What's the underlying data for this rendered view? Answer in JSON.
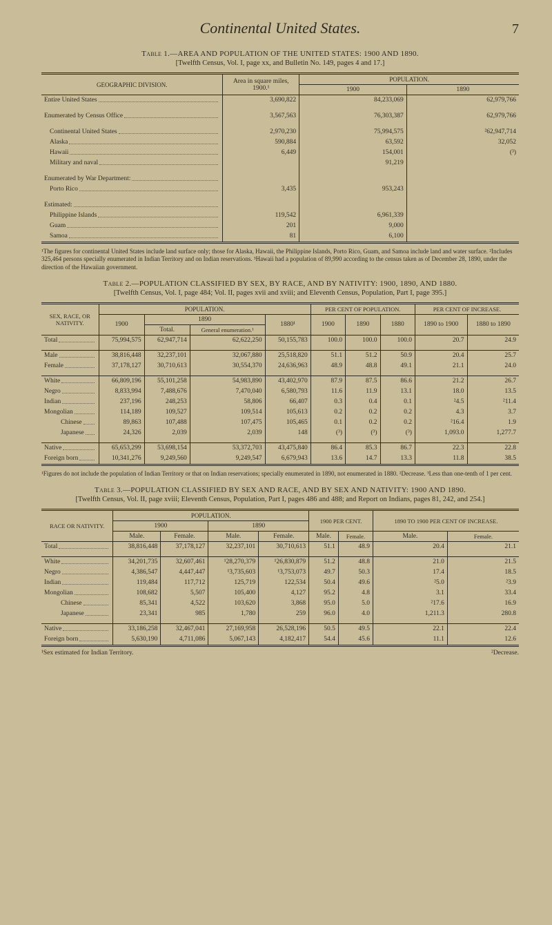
{
  "page_title": "Continental United States.",
  "page_number": "7",
  "table1": {
    "caption": "Table 1.—AREA AND POPULATION OF THE UNITED STATES: 1900 AND 1890.",
    "subcaption": "[Twelfth Census, Vol. I, page xx, and Bulletin No. 149, pages 4 and 17.]",
    "col_division": "GEOGRAPHIC DIVISION.",
    "col_area": "Area in square miles, 1900.¹",
    "col_pop": "POPULATION.",
    "col_1900": "1900",
    "col_1890": "1890",
    "rows": [
      {
        "label": "Entire United States",
        "indent": 0,
        "area": "3,690,822",
        "p1900": "84,233,069",
        "p1890": "62,979,766"
      },
      {
        "label": "Enumerated by Census Office",
        "indent": 0,
        "area": "3,567,563",
        "p1900": "76,303,387",
        "p1890": "62,979,766"
      },
      {
        "label": "Continental United States",
        "indent": 1,
        "area": "2,970,230",
        "p1900": "75,994,575",
        "p1890": "²62,947,714"
      },
      {
        "label": "Alaska",
        "indent": 1,
        "area": "590,884",
        "p1900": "63,592",
        "p1890": "32,052"
      },
      {
        "label": "Hawaii",
        "indent": 1,
        "area": "6,449",
        "p1900": "154,001",
        "p1890": "(³)"
      },
      {
        "label": "Military and naval",
        "indent": 1,
        "area": "",
        "p1900": "91,219",
        "p1890": ""
      },
      {
        "label": "Enumerated by War Department:",
        "indent": 0,
        "area": "",
        "p1900": "",
        "p1890": ""
      },
      {
        "label": "Porto Rico",
        "indent": 1,
        "area": "3,435",
        "p1900": "953,243",
        "p1890": ""
      },
      {
        "label": "Estimated:",
        "indent": 0,
        "area": "",
        "p1900": "",
        "p1890": ""
      },
      {
        "label": "Philippine Islands",
        "indent": 1,
        "area": "119,542",
        "p1900": "6,961,339",
        "p1890": ""
      },
      {
        "label": "Guam",
        "indent": 1,
        "area": "201",
        "p1900": "9,000",
        "p1890": ""
      },
      {
        "label": "Samoa",
        "indent": 1,
        "area": "81",
        "p1900": "6,100",
        "p1890": ""
      }
    ],
    "footnotes": "¹The figures for continental United States include land surface only; those for Alaska, Hawaii, the Philippine Islands, Porto Rico, Guam, and Samoa include land and water surface.  ²Includes 325,464 persons specially enumerated in Indian Territory and on Indian reservations.  ³Hawaii had a population of 89,990 according to the census taken as of December 28, 1890, under the direction of the Hawaiian government."
  },
  "table2": {
    "caption": "Table 2.—POPULATION CLASSIFIED BY SEX, BY RACE, AND BY NATIVITY: 1900, 1890, AND 1880.",
    "subcaption": "[Twelfth Census, Vol. I, page 484; Vol. II, pages xvii and xviii; and Eleventh Census, Population, Part I, page 395.]",
    "stub": "SEX, RACE, OR NATIVITY.",
    "h_pop": "POPULATION.",
    "h_pct": "PER CENT OF POPULATION.",
    "h_inc": "PER CENT OF INCREASE.",
    "h_1900": "1900",
    "h_1890": "1890",
    "h_total": "Total.",
    "h_gen": "General enumeration.¹",
    "h_1880": "1880¹",
    "h_p1900": "1900",
    "h_p1890": "1890",
    "h_p1880": "1880",
    "h_i1": "1890 to 1900",
    "h_i2": "1880 to 1890",
    "rows": [
      {
        "l": "Total",
        "c": [
          "75,994,575",
          "62,947,714",
          "62,622,250",
          "50,155,783",
          "100.0",
          "100.0",
          "100.0",
          "20.7",
          "24.9"
        ]
      },
      {
        "l": "Male",
        "c": [
          "38,816,448",
          "32,237,101",
          "32,067,880",
          "25,518,820",
          "51.1",
          "51.2",
          "50.9",
          "20.4",
          "25.7"
        ]
      },
      {
        "l": "Female",
        "c": [
          "37,178,127",
          "30,710,613",
          "30,554,370",
          "24,636,963",
          "48.9",
          "48.8",
          "49.1",
          "21.1",
          "24.0"
        ]
      },
      {
        "l": "White",
        "c": [
          "66,809,196",
          "55,101,258",
          "54,983,890",
          "43,402,970",
          "87.9",
          "87.5",
          "86.6",
          "21.2",
          "26.7"
        ]
      },
      {
        "l": "Negro",
        "c": [
          "8,833,994",
          "7,488,676",
          "7,470,040",
          "6,580,793",
          "11.6",
          "11.9",
          "13.1",
          "18.0",
          "13.5"
        ]
      },
      {
        "l": "Indian",
        "c": [
          "237,196",
          "248,253",
          "58,806",
          "66,407",
          "0.3",
          "0.4",
          "0.1",
          "²4.5",
          "²11.4"
        ]
      },
      {
        "l": "Mongolian",
        "c": [
          "114,189",
          "109,527",
          "109,514",
          "105,613",
          "0.2",
          "0.2",
          "0.2",
          "4.3",
          "3.7"
        ]
      },
      {
        "l": "Chinese",
        "i": 2,
        "c": [
          "89,863",
          "107,488",
          "107,475",
          "105,465",
          "0.1",
          "0.2",
          "0.2",
          "²16.4",
          "1.9"
        ]
      },
      {
        "l": "Japanese",
        "i": 2,
        "c": [
          "24,326",
          "2,039",
          "2,039",
          "148",
          "(³)",
          "(³)",
          "(³)",
          "1,093.0",
          "1,277.7"
        ]
      },
      {
        "l": "Native",
        "c": [
          "65,653,299",
          "53,698,154",
          "53,372,703",
          "43,475,840",
          "86.4",
          "85.3",
          "86.7",
          "22.3",
          "22.8"
        ]
      },
      {
        "l": "Foreign born",
        "c": [
          "10,341,276",
          "9,249,560",
          "9,249,547",
          "6,679,943",
          "13.6",
          "14.7",
          "13.3",
          "11.8",
          "38.5"
        ]
      }
    ],
    "footnotes": "¹Figures do not include the population of Indian Territory or that on Indian reservations; specially enumerated in 1890, not enumerated in 1880.   ²Decrease.   ³Less than one-tenth of 1 per cent."
  },
  "table3": {
    "caption": "Table 3.—POPULATION CLASSIFIED BY SEX AND RACE, AND BY SEX AND NATIVITY: 1900 AND 1890.",
    "subcaption": "[Twelfth Census, Vol. II, page xviii; Eleventh Census, Population, Part I, pages 486 and 488; and Report on Indians, pages 81, 242, and 254.]",
    "stub": "RACE OR NATIVITY.",
    "h_pop": "POPULATION.",
    "h_1900": "1900",
    "h_1890": "1890",
    "h_pct": "1900 PER CENT.",
    "h_inc": "1890 TO 1900 PER CENT OF INCREASE.",
    "h_m": "Male.",
    "h_f": "Female.",
    "h_fe": "Female.",
    "rows": [
      {
        "l": "Total",
        "c": [
          "38,816,448",
          "37,178,127",
          "32,237,101",
          "30,710,613",
          "51.1",
          "48.9",
          "20.4",
          "21.1"
        ]
      },
      {
        "l": "White",
        "c": [
          "34,201,735",
          "32,607,461",
          "¹28,270,379",
          "¹26,830,879",
          "51.2",
          "48.8",
          "21.0",
          "21.5"
        ]
      },
      {
        "l": "Negro",
        "c": [
          "4,386,547",
          "4,447,447",
          "¹3,735,603",
          "¹3,753,073",
          "49.7",
          "50.3",
          "17.4",
          "18.5"
        ]
      },
      {
        "l": "Indian",
        "c": [
          "119,484",
          "117,712",
          "125,719",
          "122,534",
          "50.4",
          "49.6",
          "²5.0",
          "²3.9"
        ]
      },
      {
        "l": "Mongolian",
        "c": [
          "108,682",
          "5,507",
          "105,400",
          "4,127",
          "95.2",
          "4.8",
          "3.1",
          "33.4"
        ]
      },
      {
        "l": "Chinese",
        "i": 2,
        "c": [
          "85,341",
          "4,522",
          "103,620",
          "3,868",
          "95.0",
          "5.0",
          "²17.6",
          "16.9"
        ]
      },
      {
        "l": "Japanese",
        "i": 2,
        "c": [
          "23,341",
          "985",
          "1,780",
          "259",
          "96.0",
          "4.0",
          "1,211.3",
          "280.8"
        ]
      },
      {
        "l": "Native",
        "c": [
          "33,186,258",
          "32,467,041",
          "27,169,958",
          "26,528,196",
          "50.5",
          "49.5",
          "22.1",
          "22.4"
        ]
      },
      {
        "l": "Foreign born",
        "c": [
          "5,630,190",
          "4,711,086",
          "5,067,143",
          "4,182,417",
          "54.4",
          "45.6",
          "11.1",
          "12.6"
        ]
      }
    ],
    "foot_left": "¹Sex estimated for Indian Territory.",
    "foot_right": "²Decrease."
  }
}
